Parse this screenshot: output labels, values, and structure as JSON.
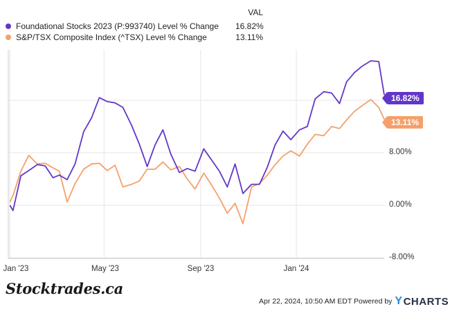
{
  "legend": {
    "header": "VAL",
    "items": [
      {
        "name": "Foundational Stocks 2023 (P:993740) Level % Change",
        "value": "16.82%",
        "color": "#6236c8"
      },
      {
        "name": "S&P/TSX Composite Index (^TSX) Level % Change",
        "value": "13.11%",
        "color": "#f5a06a"
      }
    ]
  },
  "flags": [
    "16.82%",
    "13.11%"
  ],
  "footer": {
    "timestamp": "Apr 22, 2024, 10:50 AM EDT Powered by",
    "brand_logo": "CHARTS",
    "watermark": "Stocktrades.ca"
  },
  "chart_data": {
    "type": "line",
    "x_ticks": [
      "Jan '23",
      "May '23",
      "Sep '23",
      "Jan '24"
    ],
    "y_ticks": [
      "-8.00%",
      "0.00%",
      "8.00%"
    ],
    "ylim": [
      -8,
      24
    ],
    "xlim": [
      "2022-12-30",
      "2024-04-22"
    ],
    "grid": true,
    "legend_position": "top-left",
    "series": [
      {
        "name": "Foundational Stocks 2023 (P:993740) Level % Change",
        "color": "#6236c8",
        "x": [
          "2023-01-01",
          "2023-01-05",
          "2023-01-15",
          "2023-01-25",
          "2023-02-05",
          "2023-02-15",
          "2023-02-25",
          "2023-03-05",
          "2023-03-15",
          "2023-03-25",
          "2023-04-05",
          "2023-04-15",
          "2023-04-25",
          "2023-05-05",
          "2023-05-15",
          "2023-05-25",
          "2023-06-05",
          "2023-06-15",
          "2023-06-25",
          "2023-07-05",
          "2023-07-15",
          "2023-07-25",
          "2023-08-05",
          "2023-08-15",
          "2023-08-25",
          "2023-09-05",
          "2023-09-15",
          "2023-09-25",
          "2023-10-05",
          "2023-10-15",
          "2023-10-25",
          "2023-11-05",
          "2023-11-15",
          "2023-11-25",
          "2023-12-05",
          "2023-12-15",
          "2023-12-25",
          "2024-01-05",
          "2024-01-15",
          "2024-01-25",
          "2024-02-05",
          "2024-02-15",
          "2024-02-25",
          "2024-03-05",
          "2024-03-15",
          "2024-03-25",
          "2024-04-05",
          "2024-04-15",
          "2024-04-22"
        ],
        "values": [
          0.0,
          -0.8,
          4.5,
          5.3,
          6.2,
          6.0,
          4.2,
          4.6,
          3.9,
          6.3,
          11.2,
          13.3,
          16.4,
          15.8,
          15.6,
          14.9,
          12.2,
          9.3,
          5.9,
          9.2,
          11.5,
          7.8,
          5.0,
          5.6,
          5.2,
          8.6,
          6.9,
          5.2,
          2.8,
          6.3,
          1.8,
          3.2,
          3.2,
          5.8,
          9.2,
          11.3,
          10.0,
          11.5,
          12.0,
          16.2,
          17.3,
          17.1,
          15.5,
          18.8,
          20.2,
          21.2,
          22.0,
          21.9,
          16.8
        ]
      },
      {
        "name": "S&P/TSX Composite Index (^TSX) Level % Change",
        "color": "#f5a06a",
        "x": [
          "2023-01-01",
          "2023-01-05",
          "2023-01-15",
          "2023-01-25",
          "2023-02-05",
          "2023-02-15",
          "2023-02-25",
          "2023-03-05",
          "2023-03-15",
          "2023-03-25",
          "2023-04-05",
          "2023-04-15",
          "2023-04-25",
          "2023-05-05",
          "2023-05-15",
          "2023-05-25",
          "2023-06-05",
          "2023-06-15",
          "2023-06-25",
          "2023-07-05",
          "2023-07-15",
          "2023-07-25",
          "2023-08-05",
          "2023-08-15",
          "2023-08-25",
          "2023-09-05",
          "2023-09-15",
          "2023-09-25",
          "2023-10-05",
          "2023-10-15",
          "2023-10-25",
          "2023-11-05",
          "2023-11-15",
          "2023-11-25",
          "2023-12-05",
          "2023-12-15",
          "2023-12-25",
          "2024-01-05",
          "2024-01-15",
          "2024-01-25",
          "2024-02-05",
          "2024-02-15",
          "2024-02-25",
          "2024-03-05",
          "2024-03-15",
          "2024-03-25",
          "2024-04-05",
          "2024-04-15",
          "2024-04-22"
        ],
        "values": [
          0.5,
          1.5,
          5.2,
          7.6,
          6.3,
          6.4,
          5.7,
          5.2,
          0.5,
          3.3,
          5.5,
          6.3,
          6.4,
          5.3,
          6.1,
          2.8,
          3.2,
          3.7,
          5.5,
          5.5,
          6.6,
          5.4,
          5.9,
          4.0,
          2.5,
          4.9,
          3.1,
          1.1,
          -1.2,
          0.3,
          -2.8,
          2.8,
          3.3,
          4.6,
          6.2,
          7.5,
          8.3,
          7.5,
          9.3,
          10.8,
          10.6,
          12.0,
          11.7,
          13.0,
          14.3,
          15.2,
          16.1,
          14.9,
          13.1
        ]
      }
    ]
  }
}
